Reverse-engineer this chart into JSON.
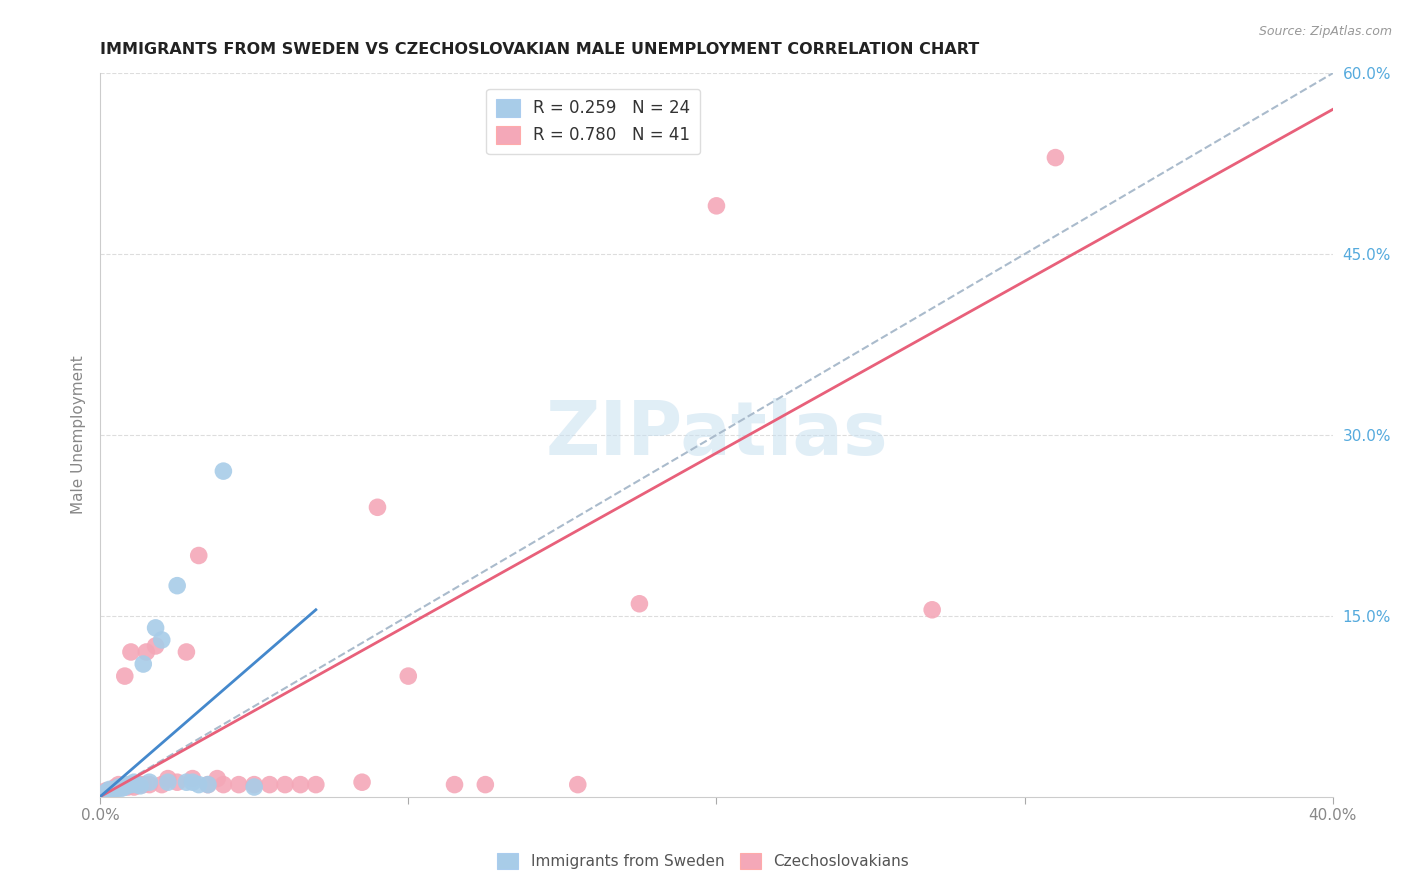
{
  "title": "IMMIGRANTS FROM SWEDEN VS CZECHOSLOVAKIAN MALE UNEMPLOYMENT CORRELATION CHART",
  "source": "Source: ZipAtlas.com",
  "ylabel": "Male Unemployment",
  "xlim": [
    0.0,
    0.4
  ],
  "ylim": [
    0.0,
    0.6
  ],
  "yticks_right": [
    0.0,
    0.15,
    0.3,
    0.45,
    0.6
  ],
  "yticklabels_right": [
    "",
    "15.0%",
    "30.0%",
    "45.0%",
    "60.0%"
  ],
  "watermark": "ZIPatlas",
  "color_blue": "#A8CCE8",
  "color_pink": "#F4A8B8",
  "color_blue_dark": "#4488CC",
  "color_pink_dark": "#E8607A",
  "color_dashed": "#AABBCC",
  "series1_x": [
    0.002,
    0.003,
    0.004,
    0.005,
    0.006,
    0.007,
    0.008,
    0.009,
    0.01,
    0.011,
    0.012,
    0.013,
    0.014,
    0.016,
    0.018,
    0.02,
    0.022,
    0.025,
    0.028,
    0.03,
    0.032,
    0.035,
    0.04,
    0.05
  ],
  "series1_y": [
    0.004,
    0.006,
    0.005,
    0.006,
    0.008,
    0.007,
    0.008,
    0.01,
    0.01,
    0.012,
    0.01,
    0.009,
    0.11,
    0.012,
    0.14,
    0.13,
    0.012,
    0.175,
    0.012,
    0.012,
    0.01,
    0.01,
    0.27,
    0.008
  ],
  "series2_x": [
    0.002,
    0.003,
    0.004,
    0.005,
    0.006,
    0.007,
    0.008,
    0.009,
    0.01,
    0.011,
    0.012,
    0.013,
    0.014,
    0.015,
    0.016,
    0.018,
    0.02,
    0.022,
    0.025,
    0.028,
    0.03,
    0.032,
    0.035,
    0.038,
    0.04,
    0.045,
    0.05,
    0.055,
    0.06,
    0.065,
    0.07,
    0.085,
    0.09,
    0.1,
    0.115,
    0.125,
    0.155,
    0.175,
    0.2,
    0.27,
    0.31
  ],
  "series2_y": [
    0.005,
    0.005,
    0.006,
    0.008,
    0.01,
    0.008,
    0.1,
    0.008,
    0.12,
    0.008,
    0.01,
    0.01,
    0.01,
    0.12,
    0.01,
    0.125,
    0.01,
    0.015,
    0.012,
    0.12,
    0.015,
    0.2,
    0.01,
    0.015,
    0.01,
    0.01,
    0.01,
    0.01,
    0.01,
    0.01,
    0.01,
    0.012,
    0.24,
    0.1,
    0.01,
    0.01,
    0.01,
    0.16,
    0.49,
    0.155,
    0.53
  ],
  "trendline1_x": [
    0.0,
    0.07
  ],
  "trendline1_y": [
    0.0,
    0.155
  ],
  "trendline2_x": [
    0.0,
    0.4
  ],
  "trendline2_y": [
    0.0,
    0.57
  ],
  "dashed_line_x": [
    0.0,
    0.4
  ],
  "dashed_line_y": [
    0.0,
    0.6
  ]
}
